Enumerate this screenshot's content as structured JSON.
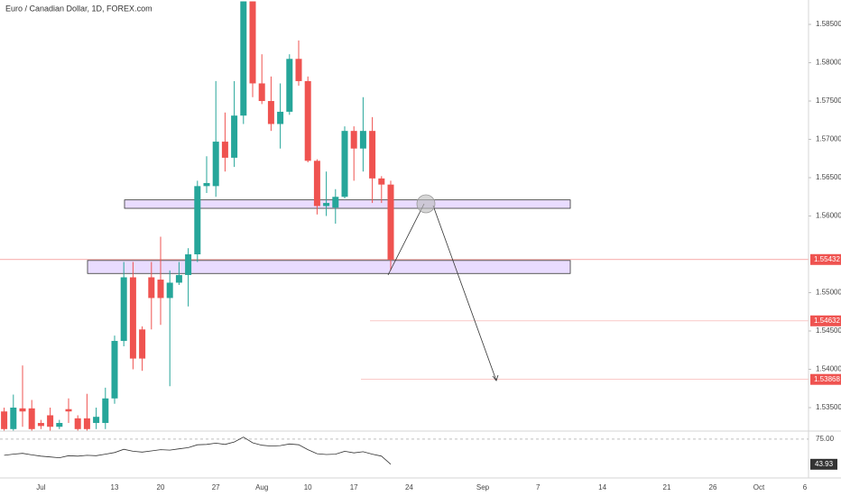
{
  "chart_data": {
    "type": "candlestick",
    "title": "Euro / Canadian Dollar, 1D, FOREX.com",
    "up_color": "#26a69a",
    "down_color": "#ef5350",
    "categories": [
      null,
      null,
      null,
      null,
      "Jul",
      null,
      null,
      null,
      null,
      null,
      null,
      null,
      "13",
      null,
      null,
      null,
      null,
      "20",
      null,
      null,
      null,
      null,
      null,
      "27",
      null,
      null,
      null,
      null,
      "Aug",
      null,
      null,
      null,
      null,
      "10",
      null,
      null,
      null,
      null,
      "17",
      null,
      null,
      null,
      null,
      null,
      "24",
      null,
      null,
      null,
      null,
      null,
      null,
      null,
      "Sep",
      null,
      null,
      null,
      null,
      null,
      "7",
      null,
      null,
      null,
      null,
      null,
      null,
      "14",
      null,
      null,
      null,
      null,
      null,
      null,
      "21",
      null,
      null,
      null,
      null,
      "26",
      null,
      null,
      null,
      null,
      "Oct",
      null,
      null,
      null,
      null,
      "6"
    ],
    "open": [
      1.5345,
      1.5322,
      1.5349,
      1.5349,
      1.533,
      1.534,
      1.5325,
      1.5348,
      1.5336,
      1.5336,
      1.533,
      1.533,
      1.5362,
      1.5437,
      1.552,
      1.5452,
      1.552,
      1.5517,
      1.5493,
      1.5513,
      1.5523,
      1.555,
      1.5639,
      1.5639,
      1.5697,
      1.5676,
      1.5731,
      1.588,
      1.5773,
      1.575,
      1.572,
      1.5736,
      1.5805,
      1.5776,
      1.5672,
      1.5613,
      1.5611,
      1.5625,
      1.5711,
      1.5688,
      1.5711,
      1.5649,
      1.5641,
      null,
      null,
      null,
      null,
      null,
      null,
      null,
      null,
      null,
      null,
      null,
      null,
      null,
      null,
      null,
      null,
      null,
      null,
      null,
      null,
      null,
      null,
      null,
      null,
      null,
      null,
      null,
      null,
      null,
      null,
      null,
      null,
      null,
      null,
      null,
      null,
      null,
      null,
      null,
      null,
      null,
      null,
      null,
      null,
      null
    ],
    "high": [
      1.535,
      1.5367,
      1.5405,
      1.536,
      1.5334,
      1.535,
      1.5334,
      1.5362,
      1.534,
      1.5368,
      1.535,
      1.5376,
      1.5444,
      1.554,
      1.554,
      1.5456,
      1.554,
      1.5573,
      1.5529,
      1.554,
      1.5558,
      1.5646,
      1.5678,
      1.5776,
      1.5735,
      1.5776,
      1.588,
      1.588,
      1.5811,
      1.5782,
      1.5773,
      1.5811,
      1.5829,
      1.5782,
      1.5674,
      1.5658,
      1.5635,
      1.5717,
      1.5717,
      1.5755,
      1.5729,
      1.5652,
      1.5646,
      null,
      null,
      null,
      null,
      null,
      null,
      null,
      null,
      null,
      null,
      null,
      null,
      null,
      null,
      null,
      null,
      null,
      null,
      null,
      null,
      null,
      null,
      null,
      null,
      null,
      null,
      null,
      null,
      null,
      null,
      null,
      null,
      null,
      null,
      null,
      null,
      null,
      null,
      null,
      null,
      null,
      null,
      null,
      null,
      null
    ],
    "low": [
      1.532,
      1.532,
      1.5325,
      1.532,
      1.5322,
      1.532,
      1.5322,
      1.533,
      1.532,
      1.532,
      1.5322,
      1.5322,
      1.5355,
      1.543,
      1.54,
      1.5398,
      1.5452,
      1.5458,
      1.5378,
      1.551,
      1.5482,
      1.554,
      1.563,
      1.5625,
      1.5658,
      1.5664,
      1.572,
      1.5755,
      1.5746,
      1.5711,
      1.5688,
      1.5732,
      1.577,
      1.567,
      1.5602,
      1.56,
      1.559,
      1.5623,
      1.5646,
      1.5658,
      1.5617,
      1.5617,
      1.5529,
      null,
      null,
      null,
      null,
      null,
      null,
      null,
      null,
      null,
      null,
      null,
      null,
      null,
      null,
      null,
      null,
      null,
      null,
      null,
      null,
      null,
      null,
      null,
      null,
      null,
      null,
      null,
      null,
      null,
      null,
      null,
      null,
      null,
      null,
      null,
      null,
      null,
      null,
      null,
      null,
      null,
      null,
      null,
      null,
      null
    ],
    "close": [
      1.5322,
      1.535,
      1.5345,
      1.5322,
      1.5326,
      1.5325,
      1.533,
      1.5345,
      1.5322,
      1.5322,
      1.5338,
      1.5362,
      1.5437,
      1.552,
      1.5414,
      1.5414,
      1.5493,
      1.5493,
      1.5513,
      1.5523,
      1.555,
      1.5639,
      1.5643,
      1.5697,
      1.5676,
      1.5731,
      1.588,
      1.5773,
      1.575,
      1.572,
      1.5736,
      1.5805,
      1.5776,
      1.5672,
      1.5613,
      1.5617,
      1.5625,
      1.5711,
      1.5688,
      1.5711,
      1.5649,
      1.5641,
      1.55432,
      null,
      null,
      null,
      null,
      null,
      null,
      null,
      null,
      null,
      null,
      null,
      null,
      null,
      null,
      null,
      null,
      null,
      null,
      null,
      null,
      null,
      null,
      null,
      null,
      null,
      null,
      null,
      null,
      null,
      null,
      null,
      null,
      null,
      null,
      null,
      null,
      null,
      null,
      null,
      null,
      null,
      null,
      null,
      null,
      null
    ],
    "ylim": [
      1.53194,
      1.58818
    ],
    "yticks": [
      {
        "value": 1.535,
        "label": "1.53500"
      },
      {
        "value": 1.54,
        "label": "1.54000"
      },
      {
        "value": 1.545,
        "label": "1.54500"
      },
      {
        "value": 1.55,
        "label": "1.55000"
      },
      {
        "value": 1.56,
        "label": "1.56000"
      },
      {
        "value": 1.565,
        "label": "1.56500"
      },
      {
        "value": 1.57,
        "label": "1.57000"
      },
      {
        "value": 1.575,
        "label": "1.57500"
      },
      {
        "value": 1.58,
        "label": "1.58000"
      },
      {
        "value": 1.585,
        "label": "1.58500"
      }
    ],
    "zones": [
      {
        "low": 1.561,
        "high": 1.5621,
        "color": "#e9dcff"
      },
      {
        "low": 1.5525,
        "high": 1.5542,
        "color": "#e9dcff"
      }
    ],
    "price_lines": [
      {
        "value": 1.55432,
        "color": "#ef5350"
      },
      {
        "value": 1.54632,
        "color": "#ef5350"
      },
      {
        "value": 1.53868,
        "color": "#ef5350"
      }
    ],
    "rsi": {
      "color": "#333333",
      "ylim": [
        27,
        85
      ],
      "yticks": [
        {
          "value": 75,
          "label": "75.00"
        }
      ],
      "values": [
        55.0,
        56.5,
        57.5,
        55.5,
        54.0,
        53.0,
        52.0,
        54.5,
        54.0,
        55.0,
        54.5,
        56.5,
        58.5,
        62.5,
        60.0,
        59.0,
        60.5,
        62.0,
        61.5,
        63.0,
        64.5,
        68.0,
        68.5,
        70.0,
        68.5,
        71.5,
        77.5,
        70.5,
        67.5,
        66.5,
        67.0,
        69.0,
        68.0,
        62.0,
        57.0,
        56.0,
        56.5,
        60.0,
        58.0,
        59.5,
        56.5,
        54.0,
        43.93,
        null,
        null,
        null,
        null,
        null,
        null,
        null,
        null,
        null,
        null,
        null,
        null,
        null,
        null,
        null,
        null,
        null,
        null,
        null,
        null,
        null,
        null,
        null,
        null,
        null,
        null,
        null,
        null,
        null,
        null,
        null,
        null,
        null,
        null,
        null,
        null,
        null,
        null,
        null,
        null,
        null,
        null,
        null,
        null,
        null
      ]
    }
  }
}
